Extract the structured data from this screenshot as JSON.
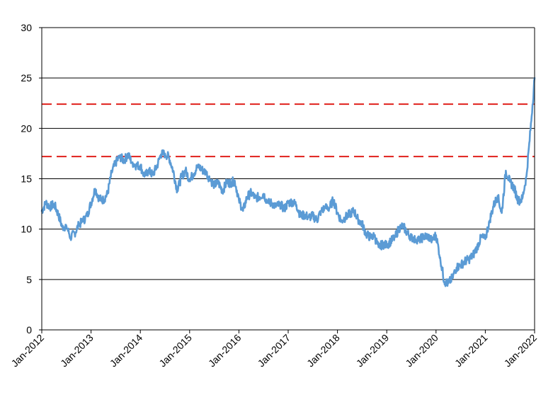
{
  "chart_data": {
    "type": "line",
    "title": "",
    "xlabel": "",
    "ylabel": "",
    "ylim": [
      0,
      30
    ],
    "yticks": [
      0,
      5,
      10,
      15,
      20,
      25,
      30
    ],
    "xlim": [
      "2012-01",
      "2022-01"
    ],
    "xticks": [
      "Jan-2012",
      "Jan-2013",
      "Jan-2014",
      "Jan-2015",
      "Jan-2016",
      "Jan-2017",
      "Jan-2018",
      "Jan-2019",
      "Jan-2020",
      "Jan-2021",
      "Jan-2022"
    ],
    "grid": "horizontal",
    "legend": "none",
    "series": [
      {
        "color": "#5b9bd5",
        "x": [
          "2012-01",
          "2012-02",
          "2012-03",
          "2012-04",
          "2012-05",
          "2012-06",
          "2012-07",
          "2012-08",
          "2012-09",
          "2012-10",
          "2012-11",
          "2012-12",
          "2013-01",
          "2013-02",
          "2013-03",
          "2013-04",
          "2013-05",
          "2013-06",
          "2013-07",
          "2013-08",
          "2013-09",
          "2013-10",
          "2013-11",
          "2013-12",
          "2014-01",
          "2014-02",
          "2014-03",
          "2014-04",
          "2014-05",
          "2014-06",
          "2014-07",
          "2014-08",
          "2014-09",
          "2014-10",
          "2014-11",
          "2014-12",
          "2015-01",
          "2015-02",
          "2015-03",
          "2015-04",
          "2015-05",
          "2015-06",
          "2015-07",
          "2015-08",
          "2015-09",
          "2015-10",
          "2015-11",
          "2015-12",
          "2016-01",
          "2016-02",
          "2016-03",
          "2016-04",
          "2016-05",
          "2016-06",
          "2016-07",
          "2016-08",
          "2016-09",
          "2016-10",
          "2016-11",
          "2016-12",
          "2017-01",
          "2017-02",
          "2017-03",
          "2017-04",
          "2017-05",
          "2017-06",
          "2017-07",
          "2017-08",
          "2017-09",
          "2017-10",
          "2017-11",
          "2017-12",
          "2018-01",
          "2018-02",
          "2018-03",
          "2018-04",
          "2018-05",
          "2018-06",
          "2018-07",
          "2018-08",
          "2018-09",
          "2018-10",
          "2018-11",
          "2018-12",
          "2019-01",
          "2019-02",
          "2019-03",
          "2019-04",
          "2019-05",
          "2019-06",
          "2019-07",
          "2019-08",
          "2019-09",
          "2019-10",
          "2019-11",
          "2019-12",
          "2020-01",
          "2020-02",
          "2020-03",
          "2020-04",
          "2020-05",
          "2020-06",
          "2020-07",
          "2020-08",
          "2020-09",
          "2020-10",
          "2020-11",
          "2020-12",
          "2021-01",
          "2021-02",
          "2021-03",
          "2021-04",
          "2021-05",
          "2021-06",
          "2021-07",
          "2021-08",
          "2021-09",
          "2021-10",
          "2021-11",
          "2021-12",
          "2022-01"
        ],
        "y": [
          11.8,
          12.6,
          12.2,
          12.5,
          11.5,
          10.2,
          10.3,
          9.2,
          9.6,
          10.4,
          10.8,
          11.3,
          12.6,
          14.0,
          13.0,
          12.9,
          13.5,
          15.6,
          16.6,
          17.2,
          16.8,
          17.4,
          16.6,
          16.3,
          16.3,
          15.2,
          15.8,
          15.4,
          16.2,
          17.4,
          17.5,
          17.1,
          15.8,
          13.8,
          15.2,
          15.8,
          14.9,
          15.5,
          16.3,
          15.9,
          15.6,
          14.9,
          14.4,
          14.6,
          13.8,
          14.6,
          14.6,
          14.8,
          12.9,
          11.8,
          13.2,
          13.6,
          13.1,
          13.2,
          13.5,
          12.6,
          12.6,
          12.2,
          12.5,
          12.0,
          12.6,
          12.7,
          12.4,
          11.3,
          11.4,
          11.2,
          11.3,
          10.9,
          11.8,
          12.1,
          12.1,
          12.9,
          11.6,
          10.8,
          11.2,
          11.5,
          11.8,
          11.0,
          10.5,
          9.5,
          9.2,
          9.3,
          8.2,
          8.5,
          8.4,
          8.8,
          9.2,
          10.1,
          10.3,
          9.6,
          9.2,
          9.0,
          9.0,
          9.2,
          9.3,
          8.9,
          9.4,
          7.2,
          4.8,
          4.6,
          5.2,
          6.2,
          6.4,
          6.8,
          7.0,
          7.4,
          8.2,
          9.2,
          9.0,
          10.8,
          12.3,
          13.3,
          11.6,
          15.8,
          14.7,
          14.1,
          12.8,
          13.0,
          15.2,
          19.8,
          25.0
        ]
      }
    ],
    "reference_lines": [
      {
        "y": 22.4,
        "style": "dashed",
        "color": "#e0201b"
      },
      {
        "y": 17.2,
        "style": "dashed",
        "color": "#e0201b"
      }
    ]
  }
}
